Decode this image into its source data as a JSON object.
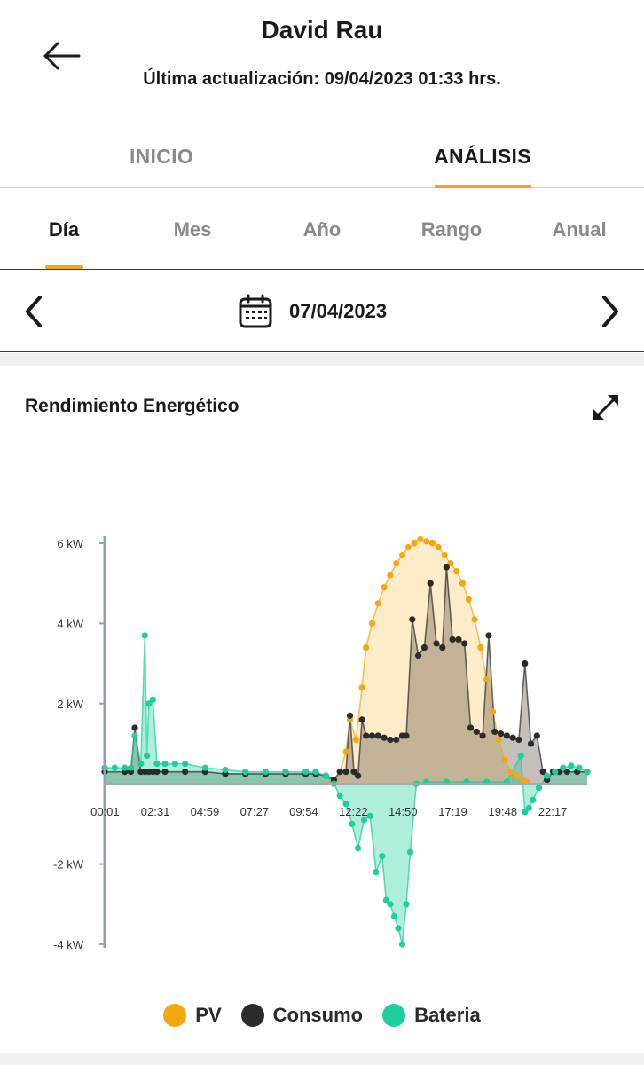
{
  "header": {
    "title": "David Rau",
    "subtitle": "Última actualización: 09/04/2023 01:33 hrs."
  },
  "main_tabs": [
    {
      "label": "INICIO",
      "active": false
    },
    {
      "label": "ANÁLISIS",
      "active": true
    }
  ],
  "sub_tabs": [
    {
      "label": "Día",
      "active": true
    },
    {
      "label": "Mes",
      "active": false
    },
    {
      "label": "Año",
      "active": false
    },
    {
      "label": "Rango",
      "active": false
    },
    {
      "label": "Anual",
      "active": false
    }
  ],
  "date_nav": {
    "date": "07/04/2023"
  },
  "card": {
    "title": "Rendimiento Energético"
  },
  "colors": {
    "accent": "#f2a41a",
    "pv": "#f5a70f",
    "consumo": "#2b2b2b",
    "bateria": "#1ccf9c"
  },
  "icons": {
    "back": "arrow-left-icon",
    "prev": "chevron-left-icon",
    "next": "chevron-right-icon",
    "calendar": "calendar-icon",
    "expand": "expand-icon"
  },
  "chart_data": {
    "type": "line",
    "title": "",
    "xlabel": "",
    "ylabel": "",
    "x_unit": "hour of day",
    "xlim": [
      0,
      24
    ],
    "ylim": [
      -4,
      6
    ],
    "y_ticks": [
      {
        "value": 6,
        "label": "6 kW"
      },
      {
        "value": 4,
        "label": "4 kW"
      },
      {
        "value": 2,
        "label": "2 kW"
      },
      {
        "value": -2,
        "label": "-2 kW"
      },
      {
        "value": -4,
        "label": "-4 kW"
      }
    ],
    "x_ticks": [
      {
        "value": 0.0167,
        "label": "00:01"
      },
      {
        "value": 2.5167,
        "label": "02:31"
      },
      {
        "value": 4.9833,
        "label": "04:59"
      },
      {
        "value": 7.45,
        "label": "07:27"
      },
      {
        "value": 9.9,
        "label": "09:54"
      },
      {
        "value": 12.3667,
        "label": "12:22"
      },
      {
        "value": 14.8333,
        "label": "14:50"
      },
      {
        "value": 17.3167,
        "label": "17:19"
      },
      {
        "value": 19.8,
        "label": "19:48"
      },
      {
        "value": 22.2833,
        "label": "22:17"
      }
    ],
    "legend_position": "bottom",
    "series": [
      {
        "name": "PV",
        "color": "#f5a70f",
        "x": [
          0,
          11.0,
          11.4,
          11.7,
          12.0,
          12.2,
          12.5,
          12.8,
          13.0,
          13.3,
          13.6,
          13.9,
          14.2,
          14.5,
          14.8,
          15.1,
          15.4,
          15.7,
          16.0,
          16.3,
          16.6,
          16.9,
          17.2,
          17.5,
          17.8,
          18.1,
          18.4,
          18.7,
          19.0,
          19.3,
          19.6,
          19.9,
          20.2,
          20.5,
          20.8,
          21.0,
          21.3,
          21.6,
          22.0,
          24
        ],
        "y": [
          0,
          0,
          0.1,
          0.3,
          0.8,
          1.6,
          1.1,
          2.4,
          3.4,
          4.0,
          4.5,
          4.9,
          5.2,
          5.5,
          5.7,
          5.9,
          6.0,
          6.1,
          6.05,
          6.0,
          5.9,
          5.7,
          5.5,
          5.3,
          5.0,
          4.6,
          4.1,
          3.4,
          2.6,
          1.8,
          1.1,
          0.6,
          0.3,
          0.2,
          0.1,
          0.05,
          0,
          0,
          0,
          0
        ]
      },
      {
        "name": "Consumo",
        "color": "#2b2b2b",
        "x": [
          0,
          1.0,
          1.3,
          1.5,
          1.8,
          2.0,
          2.2,
          2.4,
          2.6,
          3.0,
          4.0,
          5.0,
          6.0,
          7.0,
          8.0,
          9.0,
          10.0,
          10.5,
          11.0,
          11.4,
          11.7,
          12.0,
          12.2,
          12.4,
          12.6,
          12.8,
          13.0,
          13.3,
          13.6,
          13.9,
          14.2,
          14.5,
          14.8,
          15.0,
          15.3,
          15.6,
          15.9,
          16.2,
          16.5,
          16.8,
          17.0,
          17.3,
          17.6,
          17.9,
          18.2,
          18.5,
          18.8,
          19.1,
          19.4,
          19.7,
          20.0,
          20.3,
          20.6,
          20.9,
          21.2,
          21.5,
          21.8,
          22.0,
          22.3,
          22.6,
          23.0,
          23.5,
          24
        ],
        "y": [
          0.3,
          0.3,
          0.3,
          1.4,
          0.3,
          0.3,
          0.3,
          0.3,
          0.3,
          0.3,
          0.3,
          0.3,
          0.25,
          0.25,
          0.25,
          0.25,
          0.25,
          0.25,
          0.2,
          0.1,
          0.3,
          0.3,
          1.7,
          0.3,
          0.2,
          1.6,
          1.2,
          1.2,
          1.2,
          1.15,
          1.1,
          1.1,
          1.2,
          1.2,
          4.1,
          3.2,
          3.4,
          5.0,
          3.5,
          3.4,
          5.4,
          3.6,
          3.6,
          3.5,
          1.4,
          1.3,
          1.2,
          3.7,
          1.3,
          1.25,
          1.2,
          1.15,
          1.1,
          3.0,
          1.0,
          1.2,
          0.3,
          0.1,
          0.3,
          0.3,
          0.3,
          0.3,
          0.3
        ]
      },
      {
        "name": "Bateria",
        "color": "#1ccf9c",
        "x": [
          0,
          0.5,
          1.0,
          1.3,
          1.5,
          1.8,
          2.0,
          2.1,
          2.2,
          2.4,
          2.6,
          3.0,
          3.5,
          4.0,
          5.0,
          6.0,
          7.0,
          8.0,
          9.0,
          10.0,
          10.5,
          11.0,
          11.4,
          11.7,
          12.0,
          12.3,
          12.6,
          12.9,
          13.2,
          13.5,
          13.8,
          14.0,
          14.2,
          14.4,
          14.6,
          14.8,
          15.0,
          15.2,
          15.5,
          16.0,
          17.0,
          18.0,
          19.0,
          20.0,
          20.7,
          20.9,
          21.1,
          21.3,
          21.6,
          22.0,
          22.4,
          22.8,
          23.2,
          23.6,
          24
        ],
        "y": [
          0.4,
          0.4,
          0.4,
          0.4,
          1.2,
          0.5,
          3.7,
          0.7,
          2.0,
          2.1,
          0.5,
          0.5,
          0.5,
          0.5,
          0.4,
          0.35,
          0.3,
          0.3,
          0.3,
          0.3,
          0.3,
          0.2,
          0.0,
          -0.3,
          -0.5,
          -1.0,
          -1.6,
          -0.9,
          -0.8,
          -2.2,
          -1.8,
          -2.9,
          -3.0,
          -3.3,
          -3.6,
          -4.0,
          -3.0,
          -1.7,
          0.0,
          0.05,
          0.05,
          0.05,
          0.05,
          0.05,
          0.7,
          -0.7,
          -0.6,
          -0.4,
          -0.1,
          0.2,
          0.3,
          0.4,
          0.45,
          0.4,
          0.3
        ]
      }
    ]
  }
}
